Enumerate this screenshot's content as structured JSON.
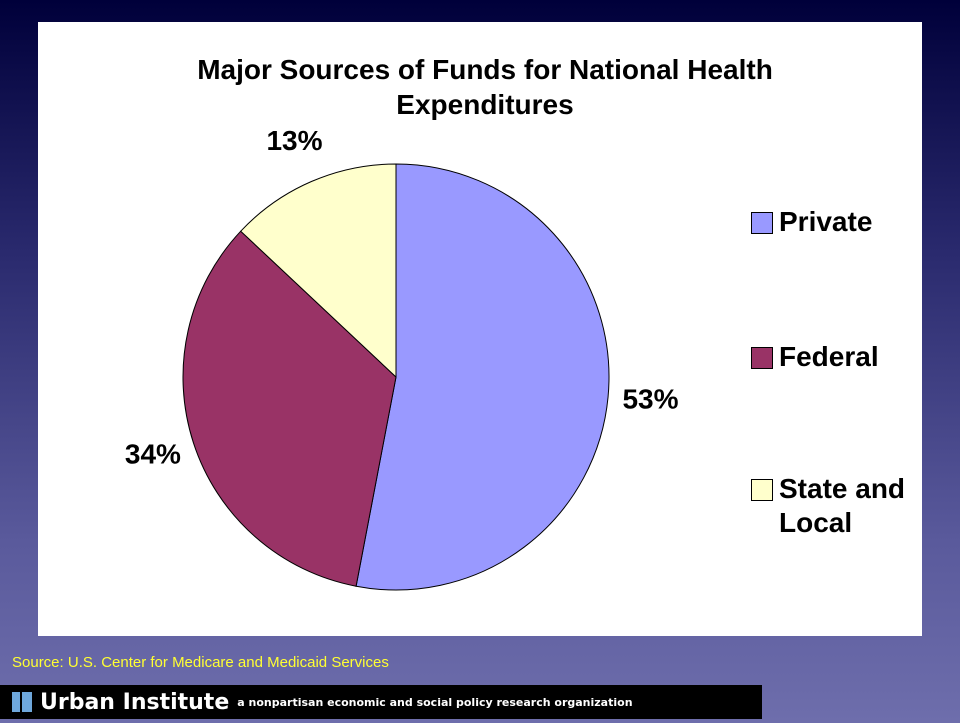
{
  "chart_data": {
    "type": "pie",
    "title": "Major Sources of Funds for National Health Expenditures",
    "categories": [
      "Private",
      "Federal",
      "State and Local"
    ],
    "values": [
      53,
      34,
      13
    ],
    "value_labels": [
      "53%",
      "34%",
      "13%"
    ],
    "colors": [
      "#9999ff",
      "#993366",
      "#ffffcc"
    ],
    "legend": "right"
  },
  "source": "Source: U.S. Center for Medicare and Medicaid Services",
  "footer": {
    "name": "Urban Institute",
    "tagline": "a nonpartisan economic and social policy research organization"
  }
}
